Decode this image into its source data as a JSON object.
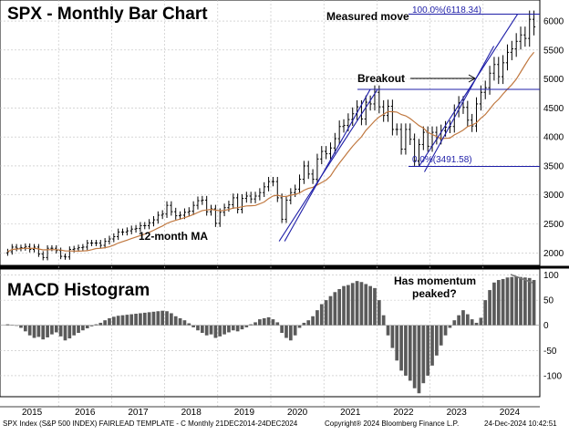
{
  "chart_data": [
    {
      "type": "bar",
      "subtype": "ohlc-monthly",
      "title": "SPX - Monthly Bar Chart",
      "x_categories": [
        "2015",
        "2016",
        "2017",
        "2018",
        "2019",
        "2020",
        "2021",
        "2022",
        "2023",
        "2024"
      ],
      "ylim": [
        1800,
        6300
      ],
      "y_ticks": [
        2000,
        2500,
        3000,
        3500,
        4000,
        4500,
        5000,
        5500,
        6000
      ],
      "grid": true,
      "monthly_close": [
        2020,
        2100,
        2080,
        2090,
        2110,
        2060,
        2100,
        1980,
        1920,
        2080,
        2080,
        2040,
        1940,
        1930,
        2060,
        2070,
        2090,
        2100,
        2170,
        2170,
        2170,
        2130,
        2200,
        2240,
        2280,
        2360,
        2360,
        2380,
        2410,
        2420,
        2470,
        2470,
        2520,
        2570,
        2650,
        2670,
        2820,
        2710,
        2640,
        2650,
        2700,
        2720,
        2820,
        2900,
        2910,
        2710,
        2760,
        2510,
        2700,
        2780,
        2830,
        2950,
        2750,
        2940,
        2980,
        2930,
        2980,
        3040,
        3140,
        3230,
        3230,
        2950,
        2580,
        2910,
        3040,
        3100,
        3270,
        3500,
        3360,
        3270,
        3620,
        3750,
        3710,
        3810,
        3970,
        4180,
        4200,
        4300,
        4400,
        4520,
        4310,
        4600,
        4570,
        4770,
        4520,
        4370,
        4530,
        4130,
        4130,
        3790,
        4130,
        3960,
        3590,
        3870,
        4080,
        3840,
        4080,
        3970,
        4110,
        4170,
        4180,
        4450,
        4590,
        4510,
        4290,
        4190,
        4570,
        4770,
        4850,
        5100,
        5250,
        5040,
        5280,
        5460,
        5520,
        5650,
        5760,
        5700,
        6030,
        5900
      ],
      "ma12_label": "12-month MA",
      "annotations": {
        "measured_move": "Measured move",
        "breakout": "Breakout",
        "breakout_level": 4820,
        "fib_high_label": "100.0%(6118.34)",
        "fib_high_value": 6118.34,
        "fib_low_label": "0.0%(3491.58)",
        "fib_low_value": 3491.58
      },
      "trendlines": [
        {
          "from": [
            "Mar 2020",
            2200
          ],
          "to": [
            "Dec 2021",
            4820
          ]
        },
        {
          "from": [
            "Oct 2022",
            3491.58
          ],
          "to": [
            "Dec 2024",
            6118.34
          ]
        }
      ]
    },
    {
      "type": "bar",
      "subtype": "histogram",
      "title": "MACD Histogram",
      "ylim": [
        -140,
        110
      ],
      "y_ticks": [
        100,
        50,
        0,
        -50,
        -100
      ],
      "values": [
        2,
        1,
        0,
        -5,
        -12,
        -20,
        -25,
        -23,
        -28,
        -24,
        -18,
        -14,
        -22,
        -30,
        -26,
        -20,
        -15,
        -10,
        -6,
        -2,
        2,
        5,
        10,
        14,
        17,
        19,
        20,
        21,
        22,
        23,
        24,
        25,
        26,
        27,
        28,
        29,
        28,
        24,
        18,
        14,
        10,
        4,
        -4,
        -10,
        -15,
        -20,
        -18,
        -25,
        -22,
        -18,
        -14,
        -10,
        -12,
        -8,
        -4,
        2,
        6,
        12,
        14,
        16,
        12,
        6,
        -15,
        -25,
        -30,
        -20,
        -5,
        5,
        10,
        18,
        30,
        42,
        50,
        58,
        66,
        72,
        78,
        80,
        84,
        88,
        86,
        82,
        78,
        74,
        50,
        20,
        -20,
        -45,
        -70,
        -90,
        -100,
        -110,
        -125,
        -135,
        -115,
        -100,
        -80,
        -60,
        -40,
        -20,
        -5,
        10,
        20,
        30,
        22,
        12,
        5,
        15,
        50,
        70,
        85,
        90,
        92,
        95,
        96,
        97,
        96,
        95,
        94,
        90
      ],
      "annotation": "Has momentum\npeaked?"
    }
  ],
  "footer": {
    "left": "SPX Index (S&P 500 INDEX) FAIRLEAD TEMPLATE - C  Monthly 21DEC2014-24DEC2024",
    "center": "Copyright® 2024 Bloomberg Finance L.P.",
    "right": "24-Dec-2024 10:42:51"
  },
  "colors": {
    "bars": "#000000",
    "ma": "#c07840",
    "trend": "#1f1fa8",
    "grid": "#bfbfbf",
    "hist": "#5a5a5a"
  }
}
